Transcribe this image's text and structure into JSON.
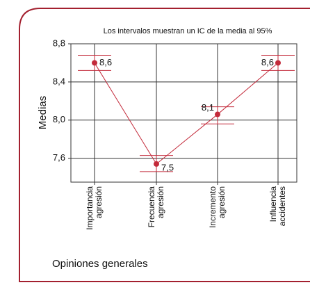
{
  "chart_data": {
    "type": "interval",
    "title": "Los intervalos muestran un IC de la media al 95%",
    "x_label": "Opiniones generales",
    "y_label": "Medias",
    "categories": [
      [
        "Importancia",
        "agresión"
      ],
      [
        "Frecuencia",
        "agresión"
      ],
      [
        "Incremento",
        "agresión"
      ],
      [
        "Influencia",
        "accidentes"
      ]
    ],
    "values": [
      8.6,
      7.54,
      8.06,
      8.6
    ],
    "value_labels": [
      "8,6",
      "7,5",
      "8,1",
      "8,6"
    ],
    "ci_low": [
      8.52,
      7.46,
      7.96,
      8.52
    ],
    "ci_high": [
      8.68,
      7.63,
      8.14,
      8.68
    ],
    "color": "#c32a3a",
    "ylim": [
      7.35,
      8.8
    ],
    "yticks": [
      {
        "value": 7.6,
        "label": "7,6"
      },
      {
        "value": 8.0,
        "label": "8,0"
      },
      {
        "value": 8.4,
        "label": "8,4"
      },
      {
        "value": 8.8,
        "label": "8,8"
      }
    ],
    "grid": true
  }
}
